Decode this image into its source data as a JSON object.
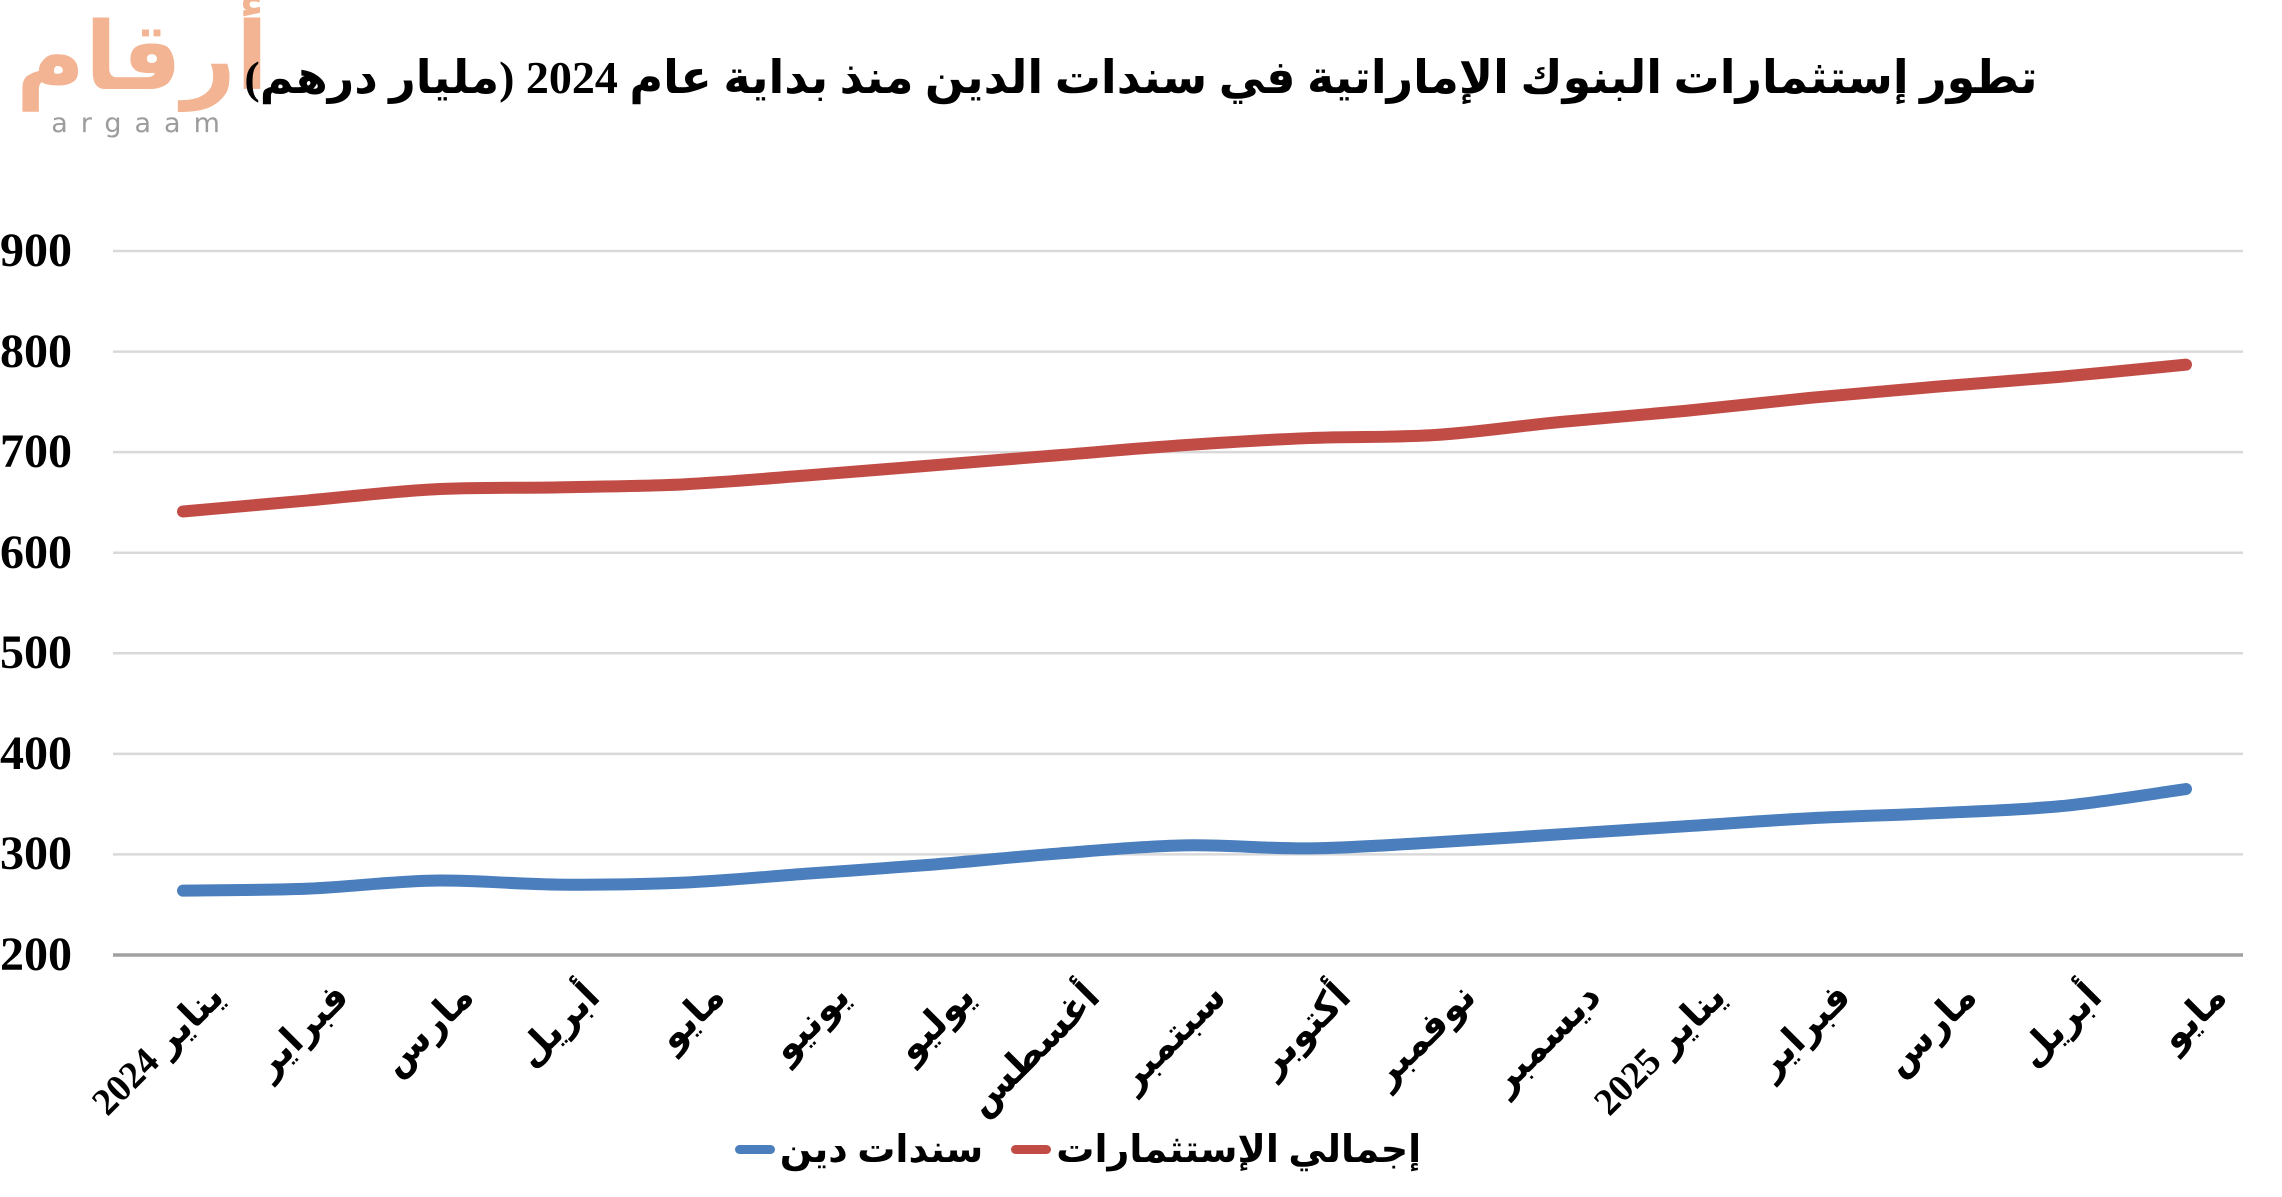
{
  "logo": {
    "arabic": "أرقام",
    "latin": "argaam"
  },
  "title": "تطور إستثمارات البنوك الإماراتية في سندات الدين منذ بداية عام 2024 (مليار درهم)",
  "colors": {
    "debt_bonds_blue": "#4a7ebc",
    "total_investments_red": "#c14c46",
    "gridline": "#d9d9d9",
    "axis_line": "#a0a0a0",
    "logo_peach": "#f3b493",
    "logo_gray": "#9c9c9c"
  },
  "chart_data": {
    "type": "line",
    "smooth": true,
    "grid": true,
    "legend_position": "bottom",
    "ylim": [
      200,
      900
    ],
    "yticks": [
      900,
      800,
      700,
      600,
      500,
      400,
      300,
      200
    ],
    "categories": [
      "يناير 2024",
      "فبراير",
      "مارس",
      "أبريل",
      "مايو",
      "يونيو",
      "يوليو",
      "أغسطس",
      "سبتمبر",
      "أكتوبر",
      "نوفمبر",
      "ديسمبر",
      "يناير 2025",
      "فبراير",
      "مارس",
      "أبريل",
      "مايو"
    ],
    "series": [
      {
        "id": "debt-bonds",
        "name": "سندات دين",
        "color": "#4a7ebc",
        "values": [
          264,
          266,
          274,
          270,
          272,
          281,
          290,
          301,
          309,
          306,
          312,
          320,
          328,
          336,
          341,
          348,
          365
        ]
      },
      {
        "id": "total-investments",
        "name": "إجمالي الإستثمارات",
        "color": "#c14c46",
        "values": [
          641,
          652,
          663,
          665,
          668,
          677,
          687,
          697,
          707,
          714,
          717,
          730,
          741,
          754,
          765,
          775,
          787
        ]
      }
    ]
  }
}
